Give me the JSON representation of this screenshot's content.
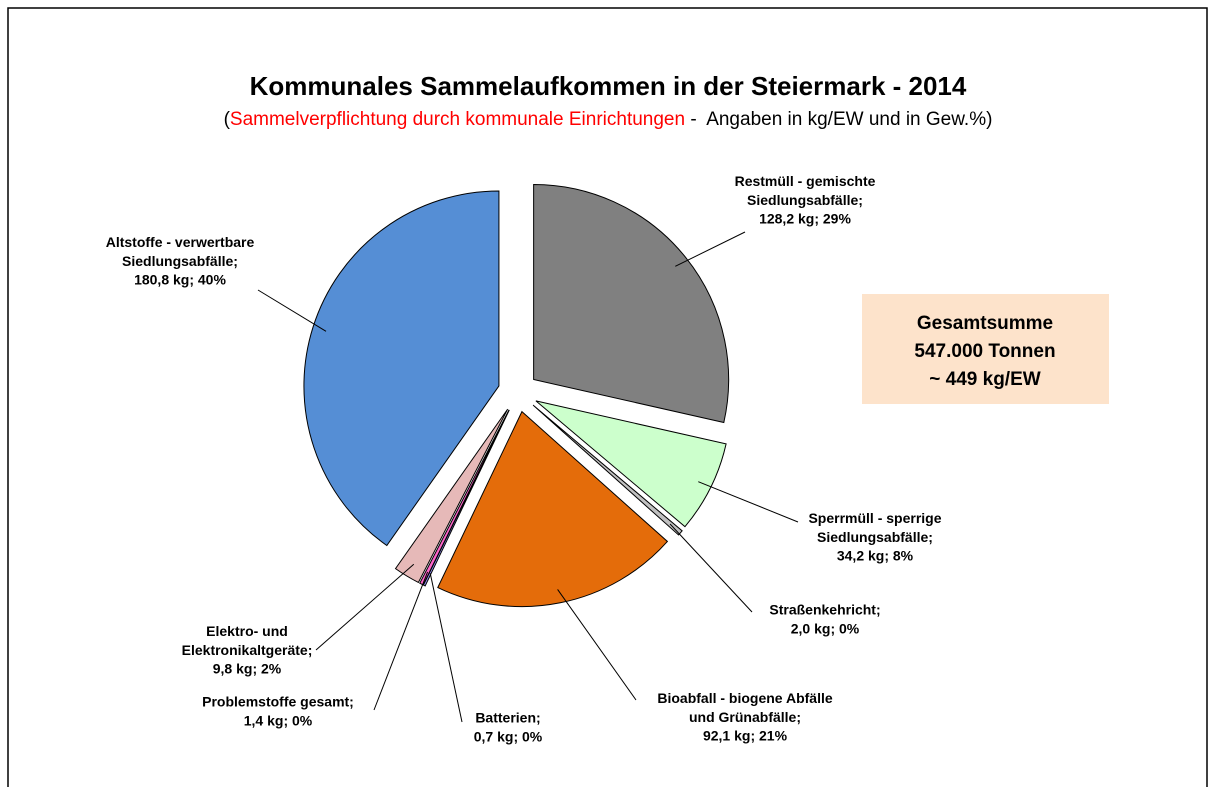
{
  "chart_data": {
    "type": "pie",
    "title": "Kommunales Sammelaufkommen in der Steiermark - 2014",
    "subtitle": [
      "(",
      "Sammelverpflichtung durch kommunale Einrichtungen",
      " -  Angaben in kg/EW und in Gew.%)"
    ],
    "categories": [
      "Restmüll - gemischte\nSiedlungsabfälle;",
      "Sperrmüll - sperrige\nSiedlungsabfälle;",
      "Straßenkehricht;",
      "Bioabfall - biogene Abfälle\nund Grünabfälle;",
      "Batterien;",
      "Problemstoffe gesamt;",
      "Elektro- und\nElektronikaltgeräte;",
      "Altstoffe - verwertbare\nSiedlungsabfälle;"
    ],
    "values": [
      128.2,
      34.2,
      2.0,
      92.1,
      0.7,
      1.4,
      9.8,
      180.8
    ],
    "value_labels": [
      "128,2 kg; 29%",
      "34,2 kg; 8%",
      "2,0 kg; 0%",
      "92,1 kg; 21%",
      "0,7 kg; 0%",
      "1,4 kg; 0%",
      "9,8 kg; 2%",
      "180,8 kg; 40%"
    ],
    "colors": [
      "#808080",
      "#ccffcc",
      "#c0c0c0",
      "#e46c0a",
      "#9999ff",
      "#ff66cc",
      "#e6b9b8",
      "#558ed5"
    ],
    "annotation": [
      "Gesamtsumme",
      "547.000 Tonnen",
      "~ 449 kg/EW"
    ]
  }
}
